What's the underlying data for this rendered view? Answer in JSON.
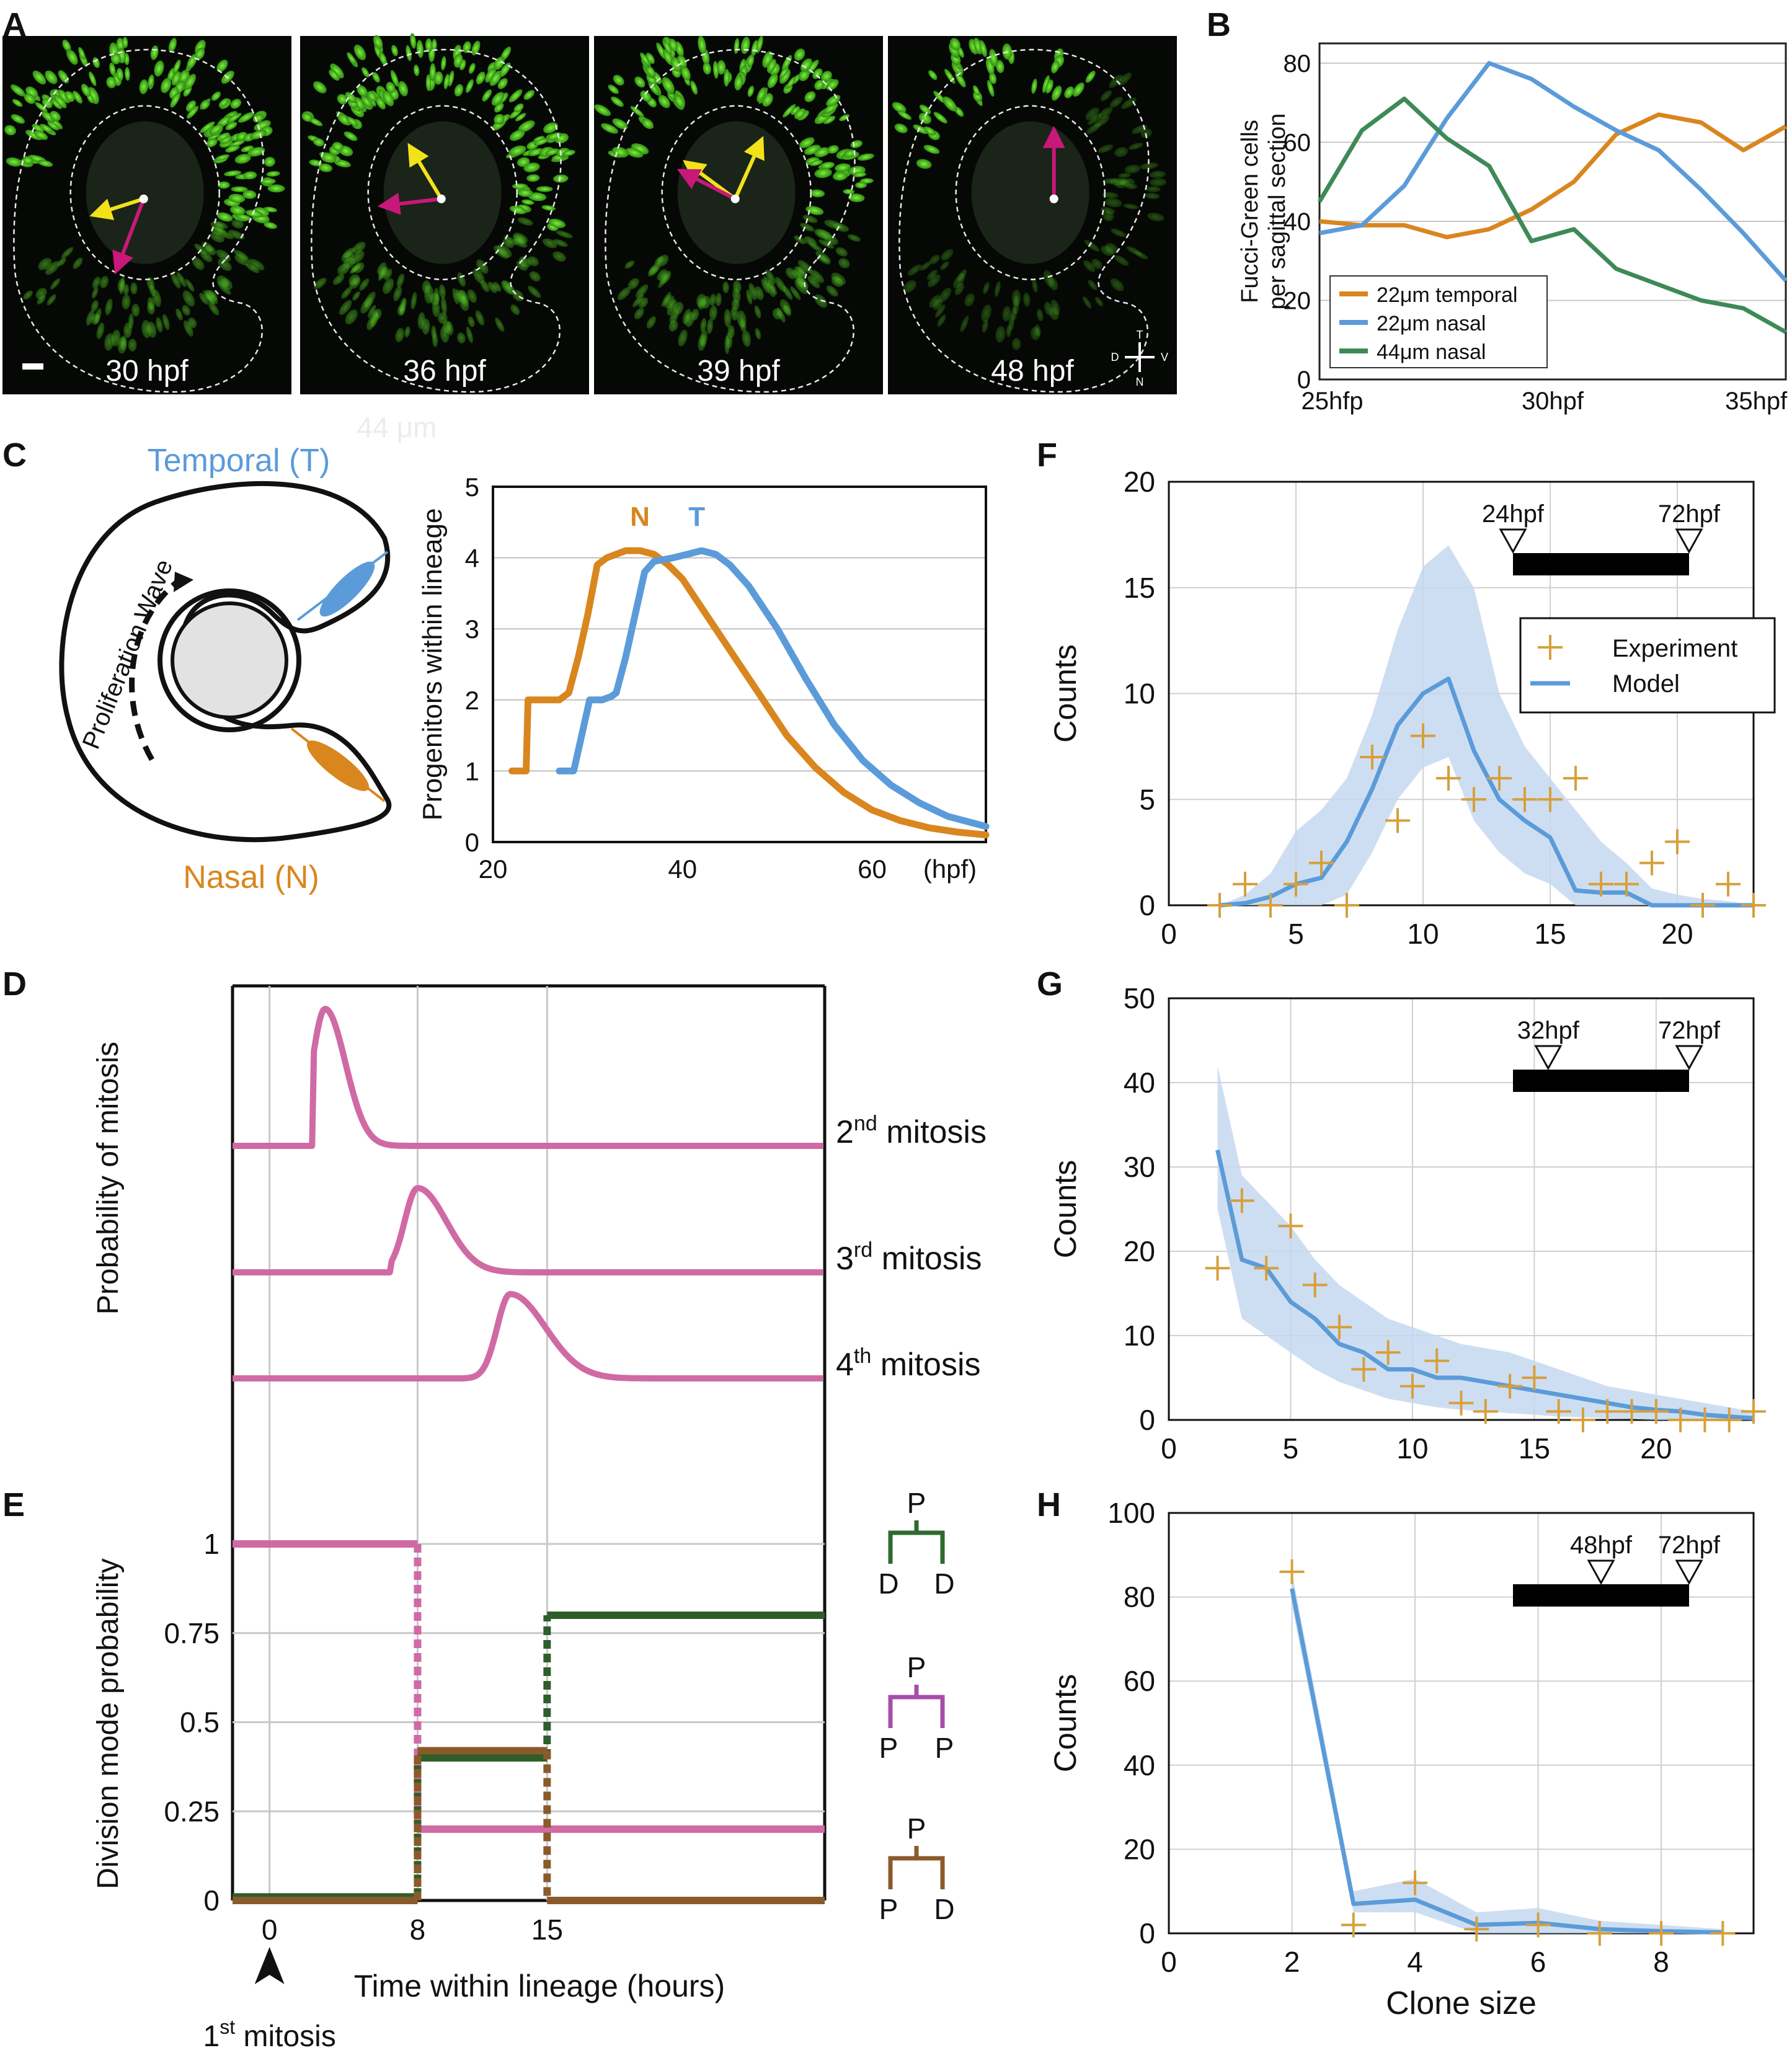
{
  "figure": {
    "panel_letters": [
      "A",
      "B",
      "C",
      "D",
      "E",
      "F",
      "G",
      "H"
    ],
    "panel_a": {
      "timepoints": [
        "30 hpf",
        "36 hpf",
        "39 hpf",
        "48 hpf"
      ],
      "compass": {
        "t": "T",
        "n": "N",
        "d": "D",
        "v": "V"
      },
      "colors": {
        "cells": "#5fd12a",
        "yellow_arrow": "#f2e21a",
        "magenta_arrow": "#c8187a"
      }
    },
    "panel_b": {
      "ylabel_line1": "Fucci-Green cells",
      "ylabel_line2": "per sagittal section",
      "xticks": [
        "25hfp",
        "30hpf",
        "35hpf"
      ]
    },
    "panel_c": {
      "temporal_label": "Temporal (T)",
      "nasal_label": "Nasal (N)",
      "wave_label": "Proliferation Wave",
      "faint_label": "44 μm",
      "ylabel": "Progenitors within lineage",
      "xunit": "(hpf)",
      "curve_labels": {
        "n": "N",
        "t": "T"
      }
    },
    "panel_d": {
      "ylabel": "Probability of mitosis",
      "mitosis_labels": [
        {
          "ord": "2",
          "sup": "nd",
          "txt": " mitosis"
        },
        {
          "ord": "3",
          "sup": "rd",
          "txt": " mitosis"
        },
        {
          "ord": "4",
          "sup": "th",
          "txt": " mitosis"
        }
      ]
    },
    "panel_e": {
      "ylabel": "Division mode probability",
      "xlabel": "Time within lineage (hours)",
      "arrow_label_main": "1",
      "arrow_label_sup": "st",
      "arrow_label_rest": " mitosis",
      "trees": [
        {
          "top": "P",
          "left": "D",
          "right": "D",
          "color": "#2f6a2f"
        },
        {
          "top": "P",
          "left": "P",
          "right": "P",
          "color": "#a64ea8"
        },
        {
          "top": "P",
          "left": "P",
          "right": "D",
          "color": "#8b5a2b"
        }
      ]
    },
    "panel_fgh": {
      "ylabel": "Counts",
      "xlabel": "Clone size",
      "legend": {
        "experiment": "Experiment",
        "model": "Model"
      }
    },
    "colors": {
      "orange": "#d9861f",
      "blue": "#5b9bd9",
      "green": "#3e8a57",
      "magenta": "#d06aa4",
      "dkgreen": "#2f5e2a",
      "brown": "#8b5a2b",
      "band": "#c5d8f0",
      "marker": "#d6a03c"
    }
  },
  "chart_data": [
    {
      "panel": "B",
      "type": "line",
      "ylim": [
        0,
        85
      ],
      "yticks": [
        0,
        20,
        40,
        60,
        80
      ],
      "xlim": [
        25,
        36
      ],
      "grid": true,
      "legend_position": "bottom-left",
      "series": [
        {
          "name": "22μm temporal",
          "color": "#d9861f",
          "x": [
            25,
            26,
            27,
            28,
            29,
            30,
            31,
            32,
            33,
            34,
            35,
            36
          ],
          "y": [
            40,
            39,
            39,
            36,
            38,
            43,
            50,
            62,
            67,
            65,
            58,
            64
          ]
        },
        {
          "name": "22μm nasal",
          "color": "#5b9bd9",
          "x": [
            25,
            26,
            27,
            28,
            29,
            30,
            31,
            32,
            33,
            34,
            35,
            36
          ],
          "y": [
            37,
            39,
            49,
            66,
            80,
            76,
            69,
            63,
            58,
            48,
            37,
            25
          ]
        },
        {
          "name": "44μm nasal",
          "color": "#3e8a57",
          "x": [
            25,
            26,
            27,
            28,
            29,
            30,
            31,
            32,
            33,
            34,
            35,
            36
          ],
          "y": [
            45,
            63,
            71,
            61,
            54,
            35,
            38,
            28,
            24,
            20,
            18,
            12
          ]
        }
      ]
    },
    {
      "panel": "C",
      "type": "line",
      "xlim": [
        20,
        72
      ],
      "ylim": [
        0,
        5
      ],
      "xticks": [
        20,
        40,
        60
      ],
      "yticks": [
        0,
        1,
        2,
        3,
        4,
        5
      ],
      "grid": true,
      "series": [
        {
          "name": "N",
          "color": "#d9861f",
          "x": [
            22,
            22.5,
            23.5,
            23.7,
            26,
            27,
            28,
            29,
            30,
            31,
            32,
            34,
            35.5,
            37,
            38.5,
            40,
            42,
            45,
            48,
            51,
            54,
            57,
            60,
            63,
            66,
            69,
            72
          ],
          "y": [
            1,
            1,
            1,
            2,
            2,
            2,
            2.1,
            2.6,
            3.2,
            3.9,
            4,
            4.1,
            4.1,
            4.05,
            3.9,
            3.7,
            3.3,
            2.7,
            2.1,
            1.5,
            1.05,
            0.7,
            0.45,
            0.3,
            0.2,
            0.14,
            0.1
          ]
        },
        {
          "name": "T",
          "color": "#5b9bd9",
          "x": [
            27,
            28.5,
            28.6,
            30.2,
            31.5,
            32.5,
            33,
            34,
            35,
            36,
            37,
            39,
            40.5,
            42,
            43.5,
            45,
            47,
            50,
            53,
            56,
            59,
            62,
            65,
            68,
            72
          ],
          "y": [
            1,
            1,
            1.05,
            2,
            2,
            2.05,
            2.1,
            2.6,
            3.2,
            3.8,
            3.95,
            4,
            4.05,
            4.1,
            4.05,
            3.9,
            3.6,
            3.0,
            2.3,
            1.65,
            1.15,
            0.8,
            0.55,
            0.36,
            0.22
          ]
        }
      ]
    },
    {
      "panel": "D",
      "type": "line",
      "ylabel": "Probability of mitosis",
      "xlim": [
        -2,
        30
      ],
      "series": [
        {
          "name": "2nd mitosis",
          "peak_hour": 3,
          "start_hour": 2.3
        },
        {
          "name": "3rd mitosis",
          "peak_hour": 8,
          "start_hour": 6.5
        },
        {
          "name": "4th mitosis",
          "peak_hour": 13,
          "start_hour": 10.5
        }
      ]
    },
    {
      "panel": "E",
      "type": "line",
      "xlim": [
        -2,
        30
      ],
      "ylim": [
        0,
        1
      ],
      "xticks": [
        0,
        8,
        15
      ],
      "yticks": [
        "0",
        "0.25",
        "0.5",
        "0.75",
        "1"
      ],
      "series": [
        {
          "name": "P P",
          "color": "#d06aa4",
          "steps": [
            [
              -2,
              1
            ],
            [
              8,
              1
            ],
            [
              8,
              0.2
            ],
            [
              30,
              0.2
            ]
          ]
        },
        {
          "name": "D D",
          "color": "#2f5e2a",
          "steps": [
            [
              -2,
              0.01
            ],
            [
              8,
              0.01
            ],
            [
              8,
              0.4
            ],
            [
              15,
              0.4
            ],
            [
              15,
              0.8
            ],
            [
              30,
              0.8
            ]
          ]
        },
        {
          "name": "P D",
          "color": "#8b5a2b",
          "steps": [
            [
              -2,
              0
            ],
            [
              8,
              0
            ],
            [
              8,
              0.42
            ],
            [
              15,
              0.42
            ],
            [
              15,
              0
            ],
            [
              30,
              0
            ]
          ]
        }
      ]
    },
    {
      "panel": "F",
      "type": "scatter",
      "xlim": [
        0,
        23
      ],
      "ylim": [
        0,
        20
      ],
      "xticks": [
        0,
        5,
        10,
        15,
        20
      ],
      "yticks": [
        0,
        5,
        10,
        15,
        20
      ],
      "timeline": {
        "start": "24hpf",
        "end": "72hpf",
        "start_frac": 0.0
      },
      "experiment": {
        "x": [
          2,
          3,
          4,
          5,
          6,
          7,
          8,
          9,
          10,
          11,
          12,
          13,
          14,
          15,
          16,
          17,
          18,
          19,
          20,
          21,
          22,
          23
        ],
        "y": [
          0,
          1,
          0,
          1,
          2,
          0,
          7,
          4,
          8,
          6,
          5,
          6,
          5,
          5,
          6,
          1,
          1,
          2,
          3,
          0,
          1,
          0
        ]
      },
      "model": {
        "x": [
          2,
          3,
          4,
          5,
          6,
          7,
          8,
          9,
          10,
          11,
          12,
          13,
          14,
          15,
          16,
          17,
          18,
          19,
          20,
          21,
          22,
          23
        ],
        "y": [
          0,
          0.1,
          0.4,
          1,
          1.3,
          3,
          5.5,
          8.5,
          10,
          10.7,
          7.3,
          5,
          4,
          3.2,
          0.7,
          0.6,
          0.6,
          0,
          0,
          0,
          0,
          0
        ],
        "upper": [
          0,
          0.5,
          1.5,
          3.5,
          4.5,
          6,
          9,
          13,
          16,
          17,
          15,
          10,
          7.5,
          6,
          4.5,
          3,
          2,
          0.8,
          0.5,
          0.3,
          0.2,
          0
        ],
        "lower": [
          0,
          0,
          0,
          0,
          0,
          0.5,
          2.5,
          5,
          6.5,
          7,
          4,
          2.5,
          1.5,
          1,
          0,
          0,
          0,
          0,
          0,
          0,
          0,
          0
        ]
      }
    },
    {
      "panel": "G",
      "type": "scatter",
      "xlim": [
        0,
        24
      ],
      "ylim": [
        0,
        50
      ],
      "xticks": [
        0,
        5,
        10,
        15,
        20
      ],
      "yticks": [
        0,
        10,
        20,
        30,
        40,
        50
      ],
      "timeline": {
        "start": "32hpf",
        "end": "72hpf",
        "start_frac": 0.2
      },
      "experiment": {
        "x": [
          2,
          3,
          4,
          5,
          6,
          7,
          8,
          9,
          10,
          11,
          12,
          13,
          14,
          15,
          16,
          17,
          18,
          19,
          20,
          21,
          22,
          23,
          24
        ],
        "y": [
          18,
          26,
          18,
          23,
          16,
          11,
          6,
          8,
          4,
          7,
          2,
          1,
          4,
          5,
          1,
          0,
          1,
          1,
          1,
          0,
          0,
          0,
          1
        ]
      },
      "model": {
        "x": [
          2,
          3,
          4,
          5,
          6,
          7,
          8,
          9,
          10,
          11,
          12,
          13,
          14,
          15,
          16,
          17,
          18,
          19,
          20,
          21,
          22,
          23,
          24
        ],
        "y": [
          32,
          19,
          18,
          14,
          12,
          9,
          8,
          6,
          6,
          5,
          5,
          4.5,
          4,
          3.5,
          3,
          2.5,
          2,
          1.5,
          1.2,
          1,
          0.6,
          0.4,
          0.2
        ],
        "upper": [
          42,
          29,
          26,
          23,
          19,
          16,
          14,
          12,
          11,
          10,
          9,
          8.5,
          8,
          7,
          6,
          5,
          4,
          3.5,
          3,
          2.5,
          2,
          1.5,
          1
        ],
        "lower": [
          25,
          12,
          10,
          8,
          6,
          4.5,
          3.5,
          2.5,
          2,
          1.5,
          1.2,
          1,
          0.8,
          0.6,
          0.4,
          0.3,
          0.2,
          0.1,
          0,
          0,
          0,
          0,
          0
        ]
      }
    },
    {
      "panel": "H",
      "type": "scatter",
      "xlabel": "Clone size",
      "xlim": [
        0,
        9.5
      ],
      "ylim": [
        0,
        100
      ],
      "xticks": [
        0,
        2,
        4,
        6,
        8
      ],
      "yticks": [
        0,
        20,
        40,
        60,
        80,
        100
      ],
      "timeline": {
        "start": "48hpf",
        "end": "72hpf",
        "start_frac": 0.5
      },
      "experiment": {
        "x": [
          2,
          3,
          4,
          5,
          6,
          7,
          8,
          9
        ],
        "y": [
          86,
          2,
          12,
          1,
          2,
          0,
          0,
          0
        ]
      },
      "model": {
        "x": [
          2,
          3,
          4,
          5,
          6,
          7,
          8,
          9
        ],
        "y": [
          82,
          7,
          8,
          2,
          2.5,
          1,
          0.5,
          0.2
        ],
        "upper": [
          86,
          10,
          13,
          5,
          6,
          3,
          2,
          1
        ],
        "lower": [
          78,
          5,
          5,
          0,
          0,
          0,
          0,
          0
        ]
      }
    }
  ]
}
